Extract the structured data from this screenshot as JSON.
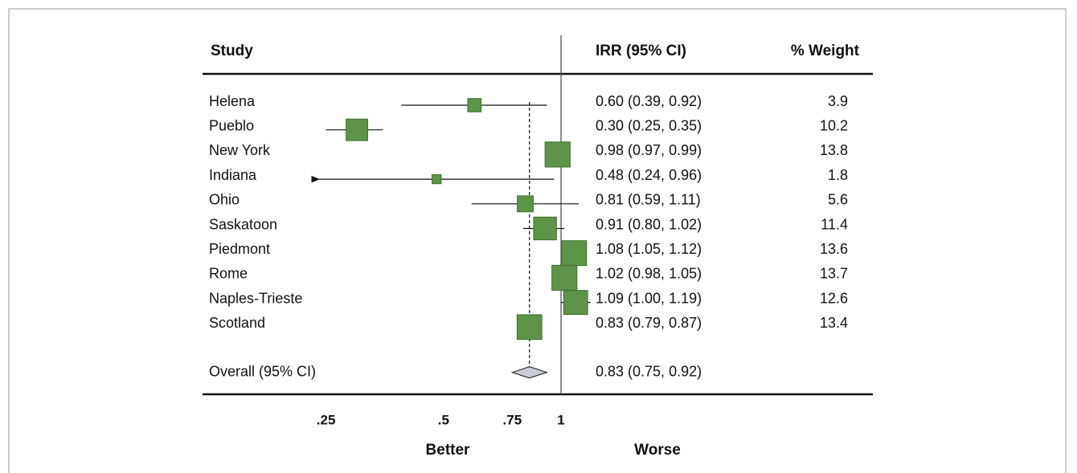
{
  "chart_data": {
    "type": "forest",
    "column_headers": [
      "Study",
      "IRR (95% CI)",
      "% Weight"
    ],
    "categories": [
      "Helena",
      "Pueblo",
      "New York",
      "Indiana",
      "Ohio",
      "Saskatoon",
      "Piedmont",
      "Rome",
      "Naples-Trieste",
      "Scotland"
    ],
    "values": [
      0.6,
      0.3,
      0.98,
      0.48,
      0.81,
      0.91,
      1.08,
      1.02,
      1.09,
      0.83
    ],
    "lower": [
      0.39,
      0.25,
      0.97,
      0.24,
      0.59,
      0.8,
      1.05,
      0.98,
      1.0,
      0.79
    ],
    "upper": [
      0.92,
      0.35,
      0.99,
      0.96,
      1.11,
      1.02,
      1.12,
      1.05,
      1.19,
      0.87
    ],
    "value_labels": [
      "0.60 (0.39, 0.92)",
      "0.30 (0.25, 0.35)",
      "0.98 (0.97, 0.99)",
      "0.48 (0.24, 0.96)",
      "0.81 (0.59, 1.11)",
      "0.91 (0.80, 1.02)",
      "1.08 (1.05, 1.12)",
      "1.02 (0.98, 1.05)",
      "1.09 (1.00, 1.19)",
      "0.83 (0.79, 0.87)"
    ],
    "weights": [
      3.9,
      10.2,
      13.8,
      1.8,
      5.6,
      11.4,
      13.6,
      13.7,
      12.6,
      13.4
    ],
    "overall": {
      "label": "Overall (95% CI)",
      "value": 0.83,
      "lower": 0.75,
      "upper": 0.92,
      "value_label": "0.83 (0.75, 0.92)"
    },
    "reference_line": 1,
    "log_scale": true,
    "xlim": [
      0.24,
      1.2
    ],
    "xticks": [
      {
        "value": 0.25,
        "label": ".25"
      },
      {
        "value": 0.5,
        "label": ".5"
      },
      {
        "value": 0.75,
        "label": ".75"
      },
      1
    ],
    "annotations": [
      "Better",
      "Worse"
    ],
    "color": "#5e9447"
  }
}
